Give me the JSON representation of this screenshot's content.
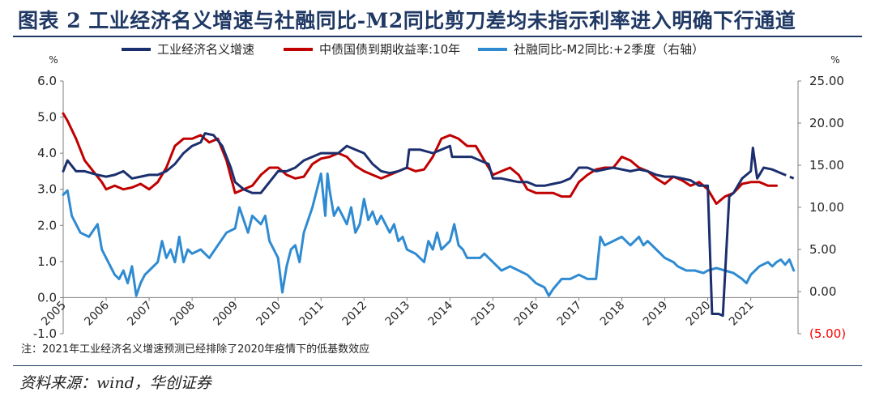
{
  "title": "图表 2  工业经济名义增速与社融同比-M2同比剪刀差均未指示利率进入明确下行通道",
  "source": "资料来源：wind，华创证券",
  "note": "注：2021年工业经济名义增速预测已经排除了2020年疫情下的低基数效应",
  "colors": {
    "navy": "#1b2f6e",
    "red": "#c00000",
    "blue": "#2f8bd1",
    "title": "#1f3864",
    "neg": "#ff0000"
  },
  "chart_data": {
    "type": "line",
    "left_unit": "%",
    "right_unit": "%",
    "left_ylim": [
      -1.0,
      6.0
    ],
    "right_ylim": [
      -5.0,
      25.0
    ],
    "left_ticks": [
      "6.0",
      "5.0",
      "4.0",
      "3.0",
      "2.0",
      "1.0",
      "0.0",
      "-1.0"
    ],
    "right_ticks": [
      "25.00",
      "20.00",
      "15.00",
      "10.00",
      "5.00",
      "0.00",
      "(5.00)"
    ],
    "x_ticks": [
      "2005",
      "2006",
      "2007",
      "2008",
      "2009",
      "2010",
      "2011",
      "2012",
      "2013",
      "2014",
      "2015",
      "2016",
      "2017",
      "2018",
      "2019",
      "2020",
      "2021"
    ],
    "xlim": [
      2005.0,
      2022.1
    ],
    "series": [
      {
        "name": "工业经济名义增速",
        "axis": "left",
        "color": "#1b2f6e",
        "points": [
          [
            2005.0,
            3.5
          ],
          [
            2005.1,
            3.8
          ],
          [
            2005.3,
            3.5
          ],
          [
            2005.5,
            3.5
          ],
          [
            2005.8,
            3.4
          ],
          [
            2006.0,
            3.35
          ],
          [
            2006.2,
            3.4
          ],
          [
            2006.4,
            3.5
          ],
          [
            2006.6,
            3.3
          ],
          [
            2006.8,
            3.35
          ],
          [
            2007.0,
            3.4
          ],
          [
            2007.2,
            3.4
          ],
          [
            2007.4,
            3.5
          ],
          [
            2007.6,
            3.7
          ],
          [
            2007.8,
            4.0
          ],
          [
            2008.0,
            4.2
          ],
          [
            2008.2,
            4.3
          ],
          [
            2008.3,
            4.55
          ],
          [
            2008.5,
            4.5
          ],
          [
            2008.7,
            4.2
          ],
          [
            2008.9,
            3.6
          ],
          [
            2009.0,
            3.2
          ],
          [
            2009.2,
            3.0
          ],
          [
            2009.4,
            2.9
          ],
          [
            2009.6,
            2.9
          ],
          [
            2009.8,
            3.2
          ],
          [
            2010.0,
            3.5
          ],
          [
            2010.2,
            3.5
          ],
          [
            2010.4,
            3.6
          ],
          [
            2010.6,
            3.8
          ],
          [
            2010.8,
            3.9
          ],
          [
            2011.0,
            4.0
          ],
          [
            2011.2,
            4.0
          ],
          [
            2011.4,
            4.0
          ],
          [
            2011.6,
            4.2
          ],
          [
            2011.8,
            4.1
          ],
          [
            2012.0,
            4.0
          ],
          [
            2012.2,
            3.7
          ],
          [
            2012.4,
            3.5
          ],
          [
            2012.6,
            3.45
          ],
          [
            2012.8,
            3.5
          ],
          [
            2013.0,
            3.6
          ],
          [
            2013.05,
            4.1
          ],
          [
            2013.3,
            4.1
          ],
          [
            2013.6,
            4.0
          ],
          [
            2013.8,
            4.1
          ],
          [
            2014.0,
            4.2
          ],
          [
            2014.05,
            3.9
          ],
          [
            2014.3,
            3.9
          ],
          [
            2014.5,
            3.9
          ],
          [
            2014.7,
            3.8
          ],
          [
            2014.9,
            3.7
          ],
          [
            2015.0,
            3.3
          ],
          [
            2015.2,
            3.3
          ],
          [
            2015.4,
            3.25
          ],
          [
            2015.6,
            3.2
          ],
          [
            2015.8,
            3.2
          ],
          [
            2016.0,
            3.1
          ],
          [
            2016.2,
            3.1
          ],
          [
            2016.4,
            3.15
          ],
          [
            2016.6,
            3.2
          ],
          [
            2016.8,
            3.3
          ],
          [
            2017.0,
            3.6
          ],
          [
            2017.2,
            3.6
          ],
          [
            2017.4,
            3.5
          ],
          [
            2017.6,
            3.55
          ],
          [
            2017.8,
            3.6
          ],
          [
            2018.0,
            3.55
          ],
          [
            2018.2,
            3.5
          ],
          [
            2018.4,
            3.55
          ],
          [
            2018.6,
            3.5
          ],
          [
            2018.8,
            3.4
          ],
          [
            2019.0,
            3.35
          ],
          [
            2019.2,
            3.35
          ],
          [
            2019.4,
            3.3
          ],
          [
            2019.6,
            3.25
          ],
          [
            2019.8,
            3.1
          ],
          [
            2020.0,
            3.1
          ],
          [
            2020.1,
            -0.45
          ],
          [
            2020.25,
            -0.45
          ],
          [
            2020.35,
            -0.5
          ],
          [
            2020.5,
            2.8
          ],
          [
            2020.6,
            2.9
          ],
          [
            2020.8,
            3.3
          ],
          [
            2021.0,
            3.5
          ],
          [
            2021.05,
            4.15
          ],
          [
            2021.15,
            3.3
          ],
          [
            2021.3,
            3.6
          ],
          [
            2021.5,
            3.55
          ],
          [
            2021.7,
            3.45
          ]
        ],
        "forecast_from": 2021.7,
        "forecast": [
          [
            2021.7,
            3.45
          ],
          [
            2021.9,
            3.35
          ],
          [
            2022.0,
            3.3
          ]
        ]
      },
      {
        "name": "中债国债到期收益率:10年",
        "axis": "left",
        "color": "#c00000",
        "points": [
          [
            2005.0,
            5.1
          ],
          [
            2005.1,
            4.9
          ],
          [
            2005.3,
            4.4
          ],
          [
            2005.5,
            3.8
          ],
          [
            2005.7,
            3.5
          ],
          [
            2005.9,
            3.2
          ],
          [
            2006.0,
            3.0
          ],
          [
            2006.2,
            3.1
          ],
          [
            2006.4,
            3.0
          ],
          [
            2006.6,
            3.05
          ],
          [
            2006.8,
            3.15
          ],
          [
            2007.0,
            3.0
          ],
          [
            2007.2,
            3.2
          ],
          [
            2007.4,
            3.6
          ],
          [
            2007.6,
            4.2
          ],
          [
            2007.8,
            4.4
          ],
          [
            2008.0,
            4.4
          ],
          [
            2008.2,
            4.5
          ],
          [
            2008.4,
            4.3
          ],
          [
            2008.6,
            4.4
          ],
          [
            2008.8,
            3.8
          ],
          [
            2009.0,
            2.9
          ],
          [
            2009.2,
            3.0
          ],
          [
            2009.4,
            3.1
          ],
          [
            2009.6,
            3.4
          ],
          [
            2009.8,
            3.6
          ],
          [
            2010.0,
            3.6
          ],
          [
            2010.2,
            3.4
          ],
          [
            2010.4,
            3.3
          ],
          [
            2010.6,
            3.35
          ],
          [
            2010.8,
            3.7
          ],
          [
            2011.0,
            3.85
          ],
          [
            2011.2,
            3.9
          ],
          [
            2011.4,
            4.0
          ],
          [
            2011.6,
            3.9
          ],
          [
            2011.8,
            3.65
          ],
          [
            2012.0,
            3.5
          ],
          [
            2012.2,
            3.4
          ],
          [
            2012.4,
            3.3
          ],
          [
            2012.6,
            3.4
          ],
          [
            2012.8,
            3.5
          ],
          [
            2013.0,
            3.6
          ],
          [
            2013.2,
            3.5
          ],
          [
            2013.4,
            3.55
          ],
          [
            2013.6,
            3.9
          ],
          [
            2013.8,
            4.4
          ],
          [
            2014.0,
            4.5
          ],
          [
            2014.2,
            4.4
          ],
          [
            2014.4,
            4.2
          ],
          [
            2014.6,
            4.2
          ],
          [
            2014.8,
            3.8
          ],
          [
            2015.0,
            3.4
          ],
          [
            2015.2,
            3.5
          ],
          [
            2015.4,
            3.6
          ],
          [
            2015.6,
            3.4
          ],
          [
            2015.8,
            3.0
          ],
          [
            2016.0,
            2.9
          ],
          [
            2016.2,
            2.9
          ],
          [
            2016.4,
            2.9
          ],
          [
            2016.6,
            2.8
          ],
          [
            2016.8,
            2.8
          ],
          [
            2017.0,
            3.2
          ],
          [
            2017.2,
            3.4
          ],
          [
            2017.4,
            3.55
          ],
          [
            2017.6,
            3.6
          ],
          [
            2017.8,
            3.6
          ],
          [
            2018.0,
            3.9
          ],
          [
            2018.2,
            3.8
          ],
          [
            2018.4,
            3.6
          ],
          [
            2018.6,
            3.5
          ],
          [
            2018.8,
            3.3
          ],
          [
            2019.0,
            3.15
          ],
          [
            2019.2,
            3.35
          ],
          [
            2019.4,
            3.25
          ],
          [
            2019.6,
            3.1
          ],
          [
            2019.8,
            3.2
          ],
          [
            2020.0,
            3.0
          ],
          [
            2020.2,
            2.6
          ],
          [
            2020.4,
            2.8
          ],
          [
            2020.6,
            2.9
          ],
          [
            2020.8,
            3.15
          ],
          [
            2021.0,
            3.2
          ],
          [
            2021.2,
            3.2
          ],
          [
            2021.4,
            3.1
          ],
          [
            2021.6,
            3.1
          ]
        ]
      },
      {
        "name": "社融同比-M2同比:+2季度（右轴）",
        "axis": "right",
        "color": "#2f8bd1",
        "points": [
          [
            2005.0,
            11.5
          ],
          [
            2005.1,
            12
          ],
          [
            2005.2,
            9
          ],
          [
            2005.4,
            7
          ],
          [
            2005.6,
            6.5
          ],
          [
            2005.8,
            8
          ],
          [
            2005.9,
            5
          ],
          [
            2006.0,
            4
          ],
          [
            2006.2,
            2
          ],
          [
            2006.3,
            1.5
          ],
          [
            2006.4,
            2.5
          ],
          [
            2006.5,
            1
          ],
          [
            2006.6,
            3
          ],
          [
            2006.7,
            -0.5
          ],
          [
            2006.8,
            1
          ],
          [
            2006.9,
            2
          ],
          [
            2007.0,
            2.5
          ],
          [
            2007.2,
            3.5
          ],
          [
            2007.3,
            6
          ],
          [
            2007.4,
            4
          ],
          [
            2007.5,
            5
          ],
          [
            2007.6,
            3.5
          ],
          [
            2007.7,
            6.5
          ],
          [
            2007.8,
            3.5
          ],
          [
            2007.9,
            5
          ],
          [
            2008.0,
            4.5
          ],
          [
            2008.2,
            5
          ],
          [
            2008.4,
            4
          ],
          [
            2008.6,
            5.5
          ],
          [
            2008.8,
            7
          ],
          [
            2009.0,
            7.5
          ],
          [
            2009.1,
            10
          ],
          [
            2009.2,
            8.5
          ],
          [
            2009.3,
            7
          ],
          [
            2009.4,
            9
          ],
          [
            2009.6,
            8
          ],
          [
            2009.7,
            9
          ],
          [
            2009.8,
            6
          ],
          [
            2010.0,
            4
          ],
          [
            2010.1,
            -0.1
          ],
          [
            2010.2,
            3
          ],
          [
            2010.3,
            5
          ],
          [
            2010.4,
            5.5
          ],
          [
            2010.5,
            3.5
          ],
          [
            2010.6,
            7
          ],
          [
            2010.8,
            10
          ],
          [
            2011.0,
            14
          ],
          [
            2011.1,
            9
          ],
          [
            2011.15,
            14
          ],
          [
            2011.2,
            12
          ],
          [
            2011.3,
            9
          ],
          [
            2011.4,
            10
          ],
          [
            2011.6,
            8
          ],
          [
            2011.7,
            10
          ],
          [
            2011.8,
            7
          ],
          [
            2011.9,
            8
          ],
          [
            2012.0,
            11
          ],
          [
            2012.1,
            8.5
          ],
          [
            2012.2,
            9.5
          ],
          [
            2012.3,
            8
          ],
          [
            2012.4,
            9
          ],
          [
            2012.5,
            8
          ],
          [
            2012.6,
            7
          ],
          [
            2012.7,
            8
          ],
          [
            2012.8,
            6
          ],
          [
            2012.9,
            6.5
          ],
          [
            2013.0,
            5
          ],
          [
            2013.2,
            4.5
          ],
          [
            2013.4,
            3.5
          ],
          [
            2013.5,
            6
          ],
          [
            2013.6,
            5
          ],
          [
            2013.7,
            7
          ],
          [
            2013.8,
            5
          ],
          [
            2013.9,
            5.5
          ],
          [
            2014.0,
            6
          ],
          [
            2014.1,
            8
          ],
          [
            2014.2,
            5.5
          ],
          [
            2014.3,
            5
          ],
          [
            2014.4,
            4
          ],
          [
            2014.6,
            4
          ],
          [
            2014.7,
            4
          ],
          [
            2014.8,
            4.5
          ],
          [
            2015.0,
            3.5
          ],
          [
            2015.2,
            2.5
          ],
          [
            2015.4,
            3
          ],
          [
            2015.6,
            2.5
          ],
          [
            2015.8,
            2
          ],
          [
            2016.0,
            1
          ],
          [
            2016.2,
            0.5
          ],
          [
            2016.3,
            -0.5
          ],
          [
            2016.4,
            0.3
          ],
          [
            2016.6,
            1.5
          ],
          [
            2016.8,
            1.5
          ],
          [
            2017.0,
            2
          ],
          [
            2017.2,
            1.5
          ],
          [
            2017.4,
            1.5
          ],
          [
            2017.5,
            6.5
          ],
          [
            2017.6,
            5.5
          ],
          [
            2017.8,
            6
          ],
          [
            2018.0,
            6.5
          ],
          [
            2018.2,
            5.5
          ],
          [
            2018.4,
            6.5
          ],
          [
            2018.5,
            5.5
          ],
          [
            2018.6,
            6
          ],
          [
            2018.8,
            5
          ],
          [
            2019.0,
            4
          ],
          [
            2019.2,
            3.5
          ],
          [
            2019.3,
            3
          ],
          [
            2019.5,
            2.5
          ],
          [
            2019.7,
            2.5
          ],
          [
            2019.9,
            2.2
          ],
          [
            2020.0,
            2.5
          ],
          [
            2020.2,
            2.8
          ],
          [
            2020.4,
            2.5
          ],
          [
            2020.6,
            2.2
          ],
          [
            2020.8,
            1.5
          ],
          [
            2020.9,
            1
          ],
          [
            2021.0,
            2
          ],
          [
            2021.2,
            3
          ],
          [
            2021.4,
            3.5
          ],
          [
            2021.5,
            3
          ],
          [
            2021.6,
            3.5
          ],
          [
            2021.7,
            3.8
          ],
          [
            2021.8,
            3.2
          ],
          [
            2021.9,
            3.8
          ],
          [
            2022.0,
            2.5
          ]
        ]
      }
    ]
  }
}
